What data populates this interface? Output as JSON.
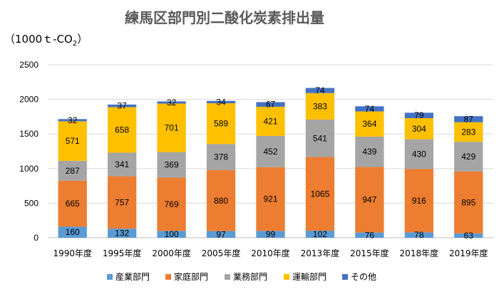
{
  "chart_data": {
    "type": "bar",
    "stacked": true,
    "title": "練馬区部門別二酸化炭素排出量",
    "unit_label": {
      "prefix": "（1000ｔ-CO",
      "sub": "2",
      "suffix": "）"
    },
    "categories": [
      "1990年度",
      "1995年度",
      "2000年度",
      "2005年度",
      "2010年度",
      "2013年度",
      "2015年度",
      "2018年度",
      "2019年度"
    ],
    "series": [
      {
        "name": "産業部門",
        "color": "#5b9bd5",
        "values": [
          160,
          132,
          100,
          97,
          99,
          102,
          76,
          78,
          63
        ]
      },
      {
        "name": "家庭部門",
        "color": "#ed7d31",
        "values": [
          665,
          757,
          769,
          880,
          921,
          1065,
          947,
          916,
          895
        ]
      },
      {
        "name": "業務部門",
        "color": "#a5a5a5",
        "values": [
          287,
          341,
          369,
          378,
          452,
          541,
          439,
          430,
          429
        ]
      },
      {
        "name": "運輸部門",
        "color": "#ffc000",
        "values": [
          571,
          658,
          701,
          589,
          421,
          383,
          364,
          304,
          283
        ]
      },
      {
        "name": "その他",
        "color": "#4472c4",
        "values": [
          32,
          37,
          32,
          34,
          67,
          74,
          74,
          79,
          87
        ]
      }
    ],
    "ylim": [
      0,
      2500
    ],
    "yticks": [
      0,
      500,
      1000,
      1500,
      2000,
      2500
    ],
    "grid": true,
    "legend_position": "bottom"
  }
}
